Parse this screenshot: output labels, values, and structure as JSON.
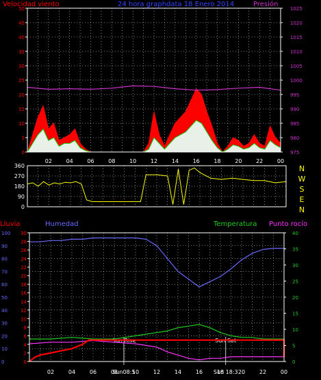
{
  "colors": {
    "wind": "#ff0000",
    "gust": "#ff0000",
    "avg_wind": "#00cc00",
    "wind_fill_light": "#e8f0e8",
    "pressure": "#cc33cc",
    "direction": "#ffff00",
    "humidity": "#6a6aff",
    "temperature": "#22cc22",
    "dewpoint": "#ff33ff",
    "rain": "#ff0000",
    "grid": "#ffffff",
    "frame": "#ffffff"
  },
  "top_chart": {
    "label_left": "Velocidad viento",
    "title": "24 hora graphdata 18 Enero 2014",
    "label_right": "Presión",
    "left_ticks": [
      "50",
      "45",
      "40",
      "35",
      "30",
      "25",
      "20",
      "15",
      "10",
      "5",
      "0"
    ],
    "right_ticks": [
      "1025",
      "1020",
      "1015",
      "1010",
      "1005",
      "1000",
      "995",
      "990",
      "985",
      "980",
      "975"
    ],
    "x_ticks": [
      "02",
      "04",
      "06",
      "08",
      "10",
      "12",
      "14",
      "16",
      "18",
      "20",
      "22",
      "00"
    ]
  },
  "direction_chart": {
    "left_ticks": [
      "360",
      "270",
      "180",
      "90",
      "0"
    ],
    "compass": [
      "N",
      "W",
      "S",
      "E",
      "N"
    ]
  },
  "bottom_chart": {
    "label_rain": "Lluvia",
    "label_humidity": "Humedad",
    "label_temperature": "Temperatura",
    "label_dewpoint": "Punto rocío",
    "humidity_ticks": [
      "100",
      "90",
      "80",
      "70",
      "60",
      "50",
      "40",
      "30",
      "20",
      "10",
      "0"
    ],
    "rain_ticks": [
      "30",
      "28",
      "26",
      "24",
      "22",
      "20",
      "18",
      "16",
      "14",
      "12",
      "10",
      "8",
      "6",
      "4",
      "2",
      "0"
    ],
    "temp_ticks": [
      "40",
      "35",
      "30",
      "25",
      "20",
      "15",
      "10",
      "5",
      "0"
    ],
    "x_ticks": [
      "02",
      "04",
      "06",
      "08",
      "10",
      "12",
      "14",
      "16",
      "18",
      "20",
      "22",
      "00"
    ],
    "sunrise_label": "Sun Rise",
    "sunset_label": "Sun Set",
    "sunrise_time_label": "Sun08:5",
    "sunset_time_label": "Sun 18:3"
  },
  "chart_data": [
    {
      "type": "area",
      "x_unit": "hour",
      "xlim": [
        0,
        24
      ],
      "ylim": [
        0,
        50
      ],
      "y2lim": [
        975,
        1025
      ],
      "series": [
        {
          "axis": "left",
          "values": [
            [
              0,
              0
            ],
            [
              0.5,
              6
            ],
            [
              1,
              12
            ],
            [
              1.5,
              16
            ],
            [
              2,
              8
            ],
            [
              2.5,
              10
            ],
            [
              3,
              4
            ],
            [
              3.5,
              5
            ],
            [
              4,
              6
            ],
            [
              4.5,
              8
            ],
            [
              5,
              3
            ],
            [
              5.5,
              1
            ],
            [
              6,
              0
            ],
            [
              11,
              0
            ],
            [
              11.5,
              3
            ],
            [
              12,
              14
            ],
            [
              12.5,
              6
            ],
            [
              13,
              2
            ],
            [
              13.5,
              6
            ],
            [
              14,
              10
            ],
            [
              14.5,
              12
            ],
            [
              15,
              14
            ],
            [
              15.5,
              18
            ],
            [
              16,
              22
            ],
            [
              16.5,
              20
            ],
            [
              17,
              14
            ],
            [
              17.5,
              9
            ],
            [
              18,
              3
            ],
            [
              18.5,
              0
            ],
            [
              19,
              2
            ],
            [
              19.5,
              5
            ],
            [
              20,
              4
            ],
            [
              20.5,
              2
            ],
            [
              21,
              3
            ],
            [
              21.5,
              6
            ],
            [
              22,
              3
            ],
            [
              22.5,
              2
            ],
            [
              23,
              9
            ],
            [
              23.5,
              5
            ],
            [
              24,
              3
            ]
          ]
        },
        {
          "axis": "left",
          "values": [
            [
              0,
              0
            ],
            [
              0.5,
              3
            ],
            [
              1,
              6
            ],
            [
              1.5,
              8
            ],
            [
              2,
              4
            ],
            [
              2.5,
              5
            ],
            [
              3,
              2
            ],
            [
              3.5,
              3
            ],
            [
              4,
              3
            ],
            [
              4.5,
              4
            ],
            [
              5,
              1.5
            ],
            [
              5.5,
              0.5
            ],
            [
              6,
              0
            ],
            [
              11,
              0
            ],
            [
              11.5,
              1
            ],
            [
              12,
              5
            ],
            [
              12.5,
              3
            ],
            [
              13,
              1
            ],
            [
              13.5,
              3
            ],
            [
              14,
              5
            ],
            [
              14.5,
              6
            ],
            [
              15,
              7
            ],
            [
              15.5,
              9
            ],
            [
              16,
              11
            ],
            [
              16.5,
              10
            ],
            [
              17,
              7
            ],
            [
              17.5,
              4
            ],
            [
              18,
              1.5
            ],
            [
              18.5,
              0
            ],
            [
              19,
              1
            ],
            [
              19.5,
              2.5
            ],
            [
              20,
              2
            ],
            [
              20.5,
              1
            ],
            [
              21,
              1.5
            ],
            [
              21.5,
              3
            ],
            [
              22,
              1.5
            ],
            [
              22.5,
              1
            ],
            [
              23,
              4
            ],
            [
              23.5,
              2.5
            ],
            [
              24,
              1.5
            ]
          ]
        },
        {
          "axis": "right",
          "values": [
            [
              0,
              997.5
            ],
            [
              2,
              996.8
            ],
            [
              4,
              997
            ],
            [
              6,
              996.8
            ],
            [
              8,
              997.2
            ],
            [
              10,
              998
            ],
            [
              12,
              997.8
            ],
            [
              14,
              997
            ],
            [
              16,
              996.5
            ],
            [
              18,
              996.7
            ],
            [
              20,
              997.2
            ],
            [
              22,
              997.5
            ],
            [
              24,
              996.5
            ]
          ]
        }
      ]
    },
    {
      "type": "line",
      "x_unit": "hour",
      "xlim": [
        0,
        24
      ],
      "ylim": [
        0,
        360
      ],
      "series": [
        {
          "values": [
            [
              0,
              200
            ],
            [
              0.5,
              210
            ],
            [
              1,
              180
            ],
            [
              1.5,
              220
            ],
            [
              2,
              190
            ],
            [
              2.5,
              210
            ],
            [
              3,
              200
            ],
            [
              3.5,
              215
            ],
            [
              4,
              210
            ],
            [
              4.5,
              220
            ],
            [
              5,
              200
            ],
            [
              5.5,
              60
            ],
            [
              6,
              45
            ],
            [
              7,
              45
            ],
            [
              8,
              45
            ],
            [
              9,
              45
            ],
            [
              9.5,
              45
            ],
            [
              10,
              45
            ],
            [
              10.5,
              45
            ],
            [
              11,
              280
            ],
            [
              12,
              280
            ],
            [
              13,
              270
            ],
            [
              13.5,
              20
            ],
            [
              14,
              330
            ],
            [
              14.5,
              20
            ],
            [
              15,
              320
            ],
            [
              15.5,
              340
            ],
            [
              16,
              300
            ],
            [
              17,
              250
            ],
            [
              18,
              240
            ],
            [
              19,
              250
            ],
            [
              20,
              240
            ],
            [
              21,
              230
            ],
            [
              22,
              230
            ],
            [
              23,
              210
            ],
            [
              24,
              220
            ]
          ]
        }
      ]
    },
    {
      "type": "line",
      "x_unit": "hour",
      "xlim": [
        0,
        24
      ],
      "ylim": [
        0,
        100
      ],
      "y2lim": [
        0,
        40
      ],
      "y3lim": [
        0,
        30
      ],
      "sunrise": 8.9,
      "sunset": 18.5,
      "series": [
        {
          "axis": "humidity",
          "values": [
            [
              0,
              93
            ],
            [
              1,
              93
            ],
            [
              2,
              94
            ],
            [
              3,
              94
            ],
            [
              4,
              95
            ],
            [
              5,
              95
            ],
            [
              6,
              96
            ],
            [
              7,
              96
            ],
            [
              8,
              96
            ],
            [
              9,
              96
            ],
            [
              10,
              96
            ],
            [
              11,
              95
            ],
            [
              12,
              90
            ],
            [
              13,
              80
            ],
            [
              14,
              70
            ],
            [
              15,
              64
            ],
            [
              16,
              58
            ],
            [
              17,
              62
            ],
            [
              18,
              66
            ],
            [
              19,
              72
            ],
            [
              20,
              79
            ],
            [
              21,
              84
            ],
            [
              22,
              87
            ],
            [
              23,
              88
            ],
            [
              24,
              88
            ]
          ]
        },
        {
          "axis": "temperature",
          "values": [
            [
              0,
              7
            ],
            [
              2,
              7
            ],
            [
              4,
              7.5
            ],
            [
              6,
              7
            ],
            [
              8,
              7
            ],
            [
              9,
              7.5
            ],
            [
              10,
              8
            ],
            [
              11,
              8.5
            ],
            [
              12,
              9
            ],
            [
              13,
              9.5
            ],
            [
              14,
              10.5
            ],
            [
              15,
              11
            ],
            [
              16,
              11.5
            ],
            [
              17,
              10.5
            ],
            [
              18,
              9
            ],
            [
              19,
              8
            ],
            [
              20,
              7.5
            ],
            [
              21,
              7.5
            ],
            [
              22,
              7
            ],
            [
              23,
              7
            ],
            [
              24,
              7
            ]
          ]
        },
        {
          "axis": "temperature",
          "values": [
            [
              0,
              5.5
            ],
            [
              2,
              6
            ],
            [
              4,
              6
            ],
            [
              6,
              6.5
            ],
            [
              8,
              6
            ],
            [
              10,
              5.5
            ],
            [
              11,
              5
            ],
            [
              12,
              4.5
            ],
            [
              13,
              3
            ],
            [
              14,
              2
            ],
            [
              15,
              1
            ],
            [
              16,
              0.5
            ],
            [
              17,
              1
            ],
            [
              18,
              1
            ],
            [
              19,
              1.5
            ],
            [
              20,
              1.5
            ],
            [
              21,
              1.5
            ],
            [
              22,
              1.5
            ],
            [
              23,
              1.5
            ],
            [
              24,
              1.5
            ]
          ]
        },
        {
          "axis": "rain",
          "values": [
            [
              0,
              0
            ],
            [
              0.5,
              1
            ],
            [
              1,
              1.5
            ],
            [
              2,
              2
            ],
            [
              3,
              2.5
            ],
            [
              4,
              3
            ],
            [
              5,
              4
            ],
            [
              5.6,
              5
            ],
            [
              6,
              5
            ],
            [
              24,
              5
            ],
            [
              24,
              1
            ]
          ]
        }
      ]
    }
  ]
}
